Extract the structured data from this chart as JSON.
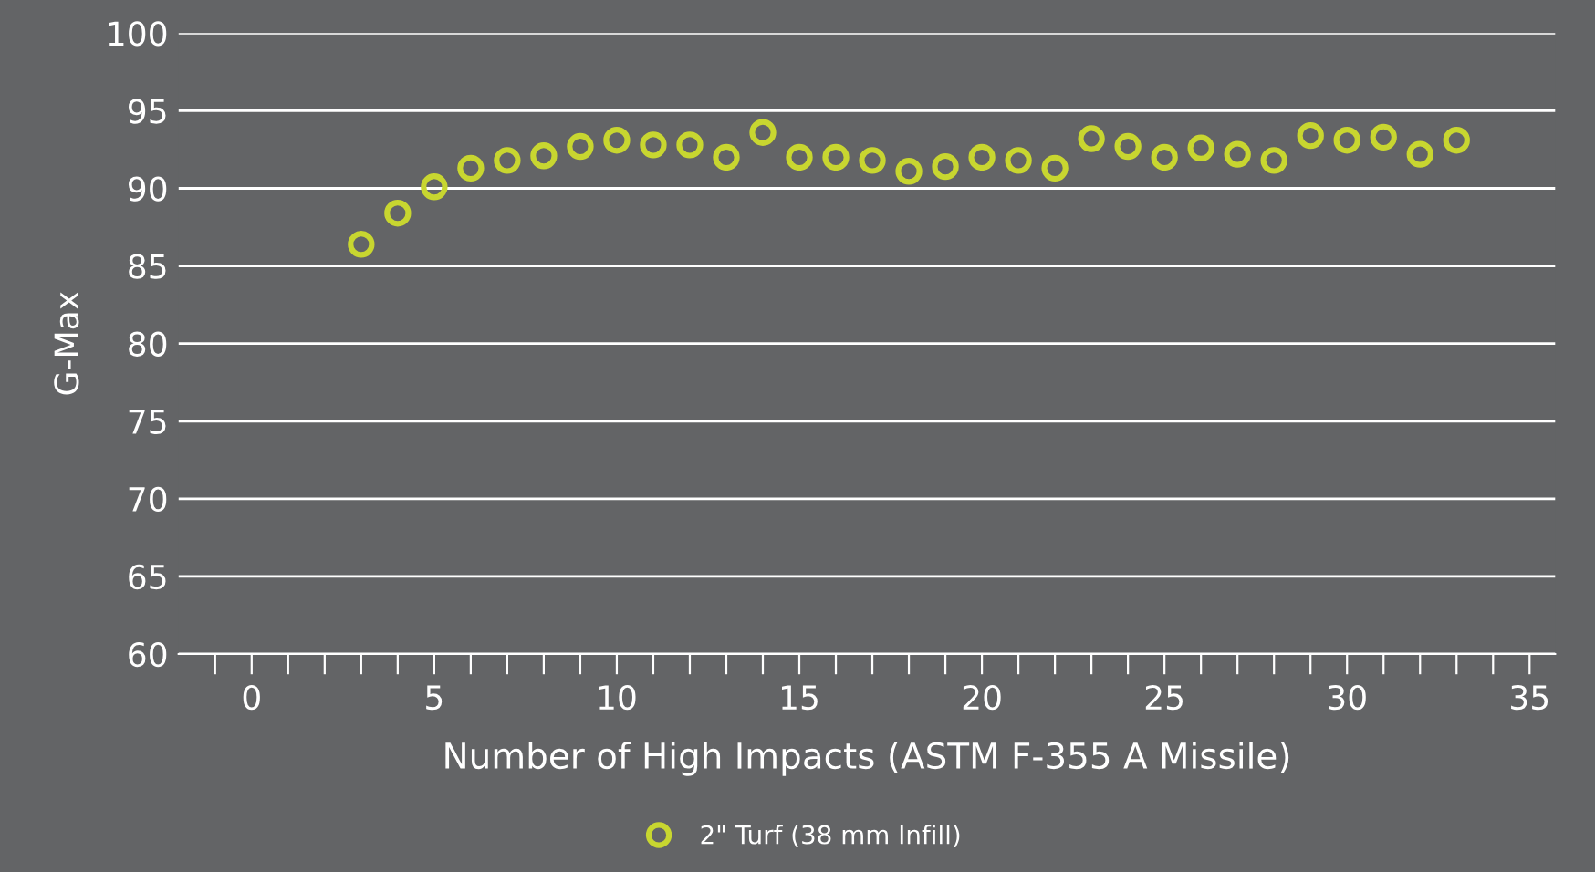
{
  "chart_data": {
    "type": "scatter",
    "xlabel": "Number of High Impacts (ASTM F-355 A Missile)",
    "ylabel": "G-Max",
    "x": [
      3,
      4,
      5,
      6,
      7,
      8,
      9,
      10,
      11,
      12,
      13,
      14,
      15,
      16,
      17,
      18,
      19,
      20,
      21,
      22,
      23,
      24,
      25,
      26,
      27,
      28,
      29,
      30,
      31,
      32,
      33
    ],
    "series": [
      {
        "name": "2\" Turf (38 mm Infill)",
        "color": "#c8d630",
        "values": [
          86.4,
          88.4,
          90.1,
          91.3,
          91.8,
          92.1,
          92.7,
          93.1,
          92.8,
          92.8,
          92.0,
          93.6,
          92.0,
          92.0,
          91.8,
          91.1,
          91.4,
          92.0,
          91.8,
          91.3,
          93.2,
          92.7,
          92.0,
          92.6,
          92.2,
          91.8,
          93.4,
          93.1,
          93.3,
          92.2,
          93.1
        ]
      }
    ],
    "xlim": [
      -2,
      35.7
    ],
    "ylim": [
      60,
      100
    ],
    "xticks": [
      {
        "value": -1,
        "label": null
      },
      0,
      {
        "value": 1,
        "label": null
      },
      {
        "value": 2,
        "label": null
      },
      {
        "value": 3,
        "label": null
      },
      {
        "value": 4,
        "label": null
      },
      5,
      {
        "value": 6,
        "label": null
      },
      {
        "value": 7,
        "label": null
      },
      {
        "value": 8,
        "label": null
      },
      {
        "value": 9,
        "label": null
      },
      10,
      {
        "value": 11,
        "label": null
      },
      {
        "value": 12,
        "label": null
      },
      {
        "value": 13,
        "label": null
      },
      {
        "value": 14,
        "label": null
      },
      15,
      {
        "value": 16,
        "label": null
      },
      {
        "value": 17,
        "label": null
      },
      {
        "value": 18,
        "label": null
      },
      {
        "value": 19,
        "label": null
      },
      20,
      {
        "value": 21,
        "label": null
      },
      {
        "value": 22,
        "label": null
      },
      {
        "value": 23,
        "label": null
      },
      {
        "value": 24,
        "label": null
      },
      25,
      {
        "value": 26,
        "label": null
      },
      {
        "value": 27,
        "label": null
      },
      {
        "value": 28,
        "label": null
      },
      {
        "value": 29,
        "label": null
      },
      30,
      {
        "value": 31,
        "label": null
      },
      {
        "value": 32,
        "label": null
      },
      {
        "value": 33,
        "label": null
      },
      {
        "value": 34,
        "label": null
      },
      35
    ],
    "yticks": [
      60,
      65,
      70,
      75,
      80,
      85,
      90,
      95,
      100
    ],
    "grid": "y",
    "legend": "bottom",
    "marker": "circle"
  }
}
